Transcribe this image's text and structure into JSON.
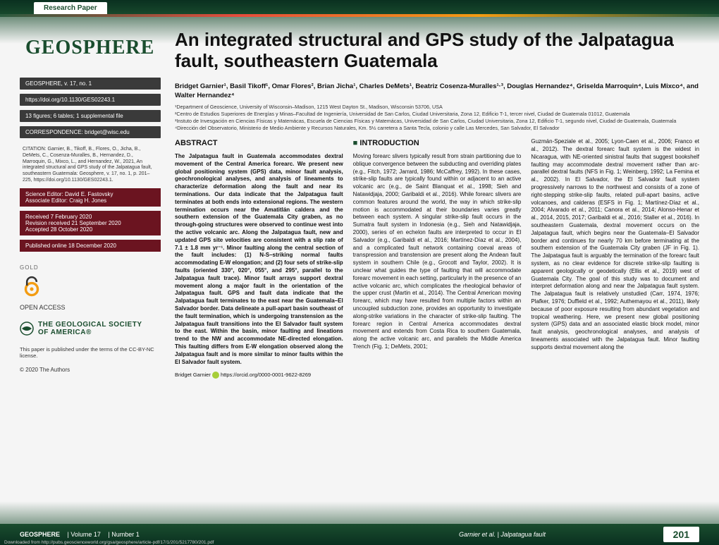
{
  "header": {
    "tab_label": "Research Paper",
    "accent_colors": [
      "#2a5a3e",
      "#e74c3c",
      "#f39c12",
      "#2a5a3e"
    ]
  },
  "sidebar": {
    "journal_title": "GEOSPHERE",
    "volume_line": "GEOSPHERE, v. 17, no. 1",
    "doi": "https://doi.org/10.1130/GES02243.1",
    "figures_line": "13 figures; 6 tables; 1 supplemental file",
    "correspondence": "CORRESPONDENCE: bridget@wisc.edu",
    "citation": "CITATION: Garnier, B., Tikoff, B., Flores, O., Jicha, B., DeMets, C., Cosenza-Muralles, B., Hernandez, D., Marroquin, G., Mixco, L., and Hernandez, W., 2021, An integrated structural and GPS study of the Jalpatagua fault, southeastern Guatemala: Geosphere, v. 17, no. 1, p. 201–225, https://doi.org/10.1130/GES02243.1.",
    "sci_editor": "Science Editor: David E. Fastovsky",
    "assoc_editor": "Associate Editor: Craig H. Jones",
    "received": "Received 7 February 2020",
    "revision": "Revision received 21 September 2020",
    "accepted": "Accepted 28 October 2020",
    "published": "Published online 18 December 2020",
    "oa_gold": "GOLD",
    "oa_label": "OPEN ACCESS",
    "gsa_line1": "THE GEOLOGICAL SOCIETY",
    "gsa_line2": "OF AMERICA®",
    "license": "This paper is published under the terms of the CC-BY-NC license.",
    "copyright": "© 2020 The Authors"
  },
  "article": {
    "title": "An integrated structural and GPS study of the Jalpatagua fault, southeastern Guatemala",
    "authors": "Bridget Garnier¹, Basil Tikoff¹, Omar Flores², Brian Jicha¹, Charles DeMets¹, Beatriz Cosenza-Muralles¹·³, Douglas Hernandez⁴, Griselda Marroquin⁴, Luis Mixco⁴, and Walter Hernandez⁴",
    "affiliations": "¹Department of Geoscience, University of Wisconsin–Madison, 1215 West Dayton St., Madison, Wisconsin 53706, USA\n²Centro de Estudios Superiores de Energías y Minas–Facultad de Ingeniería, Universidad de San Carlos, Ciudad Universitaria, Zona 12, Edificio T-1, tercer nivel, Ciudad de Guatemala 01012, Guatemala\n³Instuto de Invesgación en Ciencias Físicas y Matemácas, Escuela de Ciencias Físicas y Matemácas, Universidad de San Carlos, Ciudad Universitaria, Zona 12, Edificio T-1, segundo nivel, Ciudad de Guatemala, Guatemala\n⁴Dirección del Observatorio, Ministerio de Medio Ambiente y Recursos Naturales, Km. 5½ carretera a Santa Tecla, colonio y calle Las Mercedes, San Salvador, El Salvador"
  },
  "abstract": {
    "heading": "ABSTRACT",
    "text": "The Jalpatagua fault in Guatemala accommodates dextral movement of the Central America forearc. We present new global positioning system (GPS) data, minor fault analysis, geochronological analyses, and analysis of lineaments to characterize deformation along the fault and near its terminations. Our data indicate that the Jalpatagua fault terminates at both ends into extensional regions. The western termination occurs near the Amatitlán caldera and the southern extension of the Guatemala City graben, as no through-going structures were observed to continue west into the active volcanic arc. Along the Jalpatagua fault, new and updated GPS site velocities are consistent with a slip rate of 7.1 ± 1.8 mm yr⁻¹. Minor faulting along the central section of the fault includes: (1) N-S–striking normal faults accommodating E-W elongation; and (2) four sets of strike-slip faults (oriented 330°, 020°, 055°, and 295°, parallel to the Jalpatagua fault trace). Minor fault arrays support dextral movement along a major fault in the orientation of the Jalpatagua fault. GPS and fault data indicate that the Jalpatagua fault terminates to the east near the Guatemala–El Salvador border. Data delineate a pull-apart basin southeast of the fault termination, which is undergoing transtension as the Jalpatagua fault transitions into the El Salvador fault system to the east. Within the basin, minor faulting and lineations trend to the NW and accommodate NE-directed elongation. This faulting differs from E-W elongation observed along the Jalpatagua fault and is more similar to minor faults within the El Salvador fault system.",
    "orcid_name": "Bridget Garnier",
    "orcid_url": "https://orcid.org/0000-0001-9622-8269"
  },
  "introduction": {
    "heading": "INTRODUCTION",
    "col1": "Moving forearc slivers typically result from strain partitioning due to oblique convergence between the subducting and overriding plates (e.g., Fitch, 1972; Jarrard, 1986; McCaffrey, 1992). In these cases, strike-slip faults are typically found within or adjacent to an active volcanic arc (e.g., de Saint Blanquat et al., 1998; Sieh and Natawidjaja, 2000; Garibaldi et al., 2016). While forearc slivers are common features around the world, the way in which strike-slip motion is accommodated at their boundaries varies greatly between each system. A singular strike-slip fault occurs in the Sumatra fault system in Indonesia (e.g., Sieh and Natawidjaja, 2000), series of en echelon faults are interpreted to occur in El Salvador (e.g., Garibaldi et al., 2016; Martínez-Díaz et al., 2004), and a complicated fault network containing coeval areas of transpression and transtension are present along the Andean fault system in southern Chile (e.g., Grocott and Taylor, 2002). It is unclear what guides the type of faulting that will accommodate forearc movement in each setting, particularly in the presence of an active volcanic arc, which complicates the rheological behavior of the upper crust (Martin et al., 2014). The Central American moving forearc, which may have resulted from multiple factors within an uncoupled subduction zone, provides an opportunity to investigate along-strike variations in the character of strike-slip faulting. The forearc region in Central America accommodates dextral movement and extends from Costa Rica to southern Guatemala, along the active volcanic arc, and parallels the Middle America Trench (Fig. 1; DeMets, 2001;",
    "col2": "Guzmán-Speziale et al., 2005; Lyon-Caen et al., 2006; Franco et al., 2012). The dextral forearc fault system is the widest in Nicaragua, with NE-oriented sinistral faults that suggest bookshelf faulting may accommodate dextral movement rather than arc-parallel dextral faults (NFS in Fig. 1; Weinberg, 1992; La Femina et al., 2002). In El Salvador, the El Salvador fault system progressively narrows to the northwest and consists of a zone of right-stepping strike-slip faults, related pull-apart basins, active volcanoes, and calderas (ESFS in Fig. 1; Martínez-Díaz et al., 2004; Alvarado et al., 2011; Canora et al., 2014; Alonso-Henar et al., 2014, 2015, 2017; Garibaldi et al., 2016; Staller et al., 2016). In southeastern Guatemala, dextral movement occurs on the Jalpatagua fault, which begins near the Guatemala–El Salvador border and continues for nearly 70 km before terminating at the southern extension of the Guatemala City graben (JF in Fig. 1). The Jalpatagua fault is arguably the termination of the forearc fault system, as no clear evidence for discrete strike-slip faulting is apparent geologically or geodetically (Ellis et al., 2019) west of Guatemala City. The goal of this study was to document and interpret deformation along and near the Jalpatagua fault system. The Jalpatagua fault is relatively unstudied (Carr, 1974, 1976; Plafker, 1976; Duffield et al., 1992; Authemayou et al., 2011), likely because of poor exposure resulting from abundant vegetation and tropical weathering. Here, we present new global positioning system (GPS) data and an associated elastic block model, minor fault analysis, geochronological analyses, and analysis of lineaments associated with the Jalpatagua fault. Minor faulting supports dextral movement along the"
  },
  "footer": {
    "journal": "GEOSPHERE",
    "volume": "Volume 17",
    "number": "Number 1",
    "running_head": "Garnier et al. | Jalpatagua fault",
    "page_number": "201",
    "download_note": "Downloaded from http://pubs.geoscienceworld.org/gsa/geosphere/article-pdf/17/1/201/5217780/201.pdf"
  },
  "colors": {
    "brand_green": "#1a4d2e",
    "dark_accent": "#6b1420",
    "sidebar_item_bg": "#3a3a3a"
  }
}
